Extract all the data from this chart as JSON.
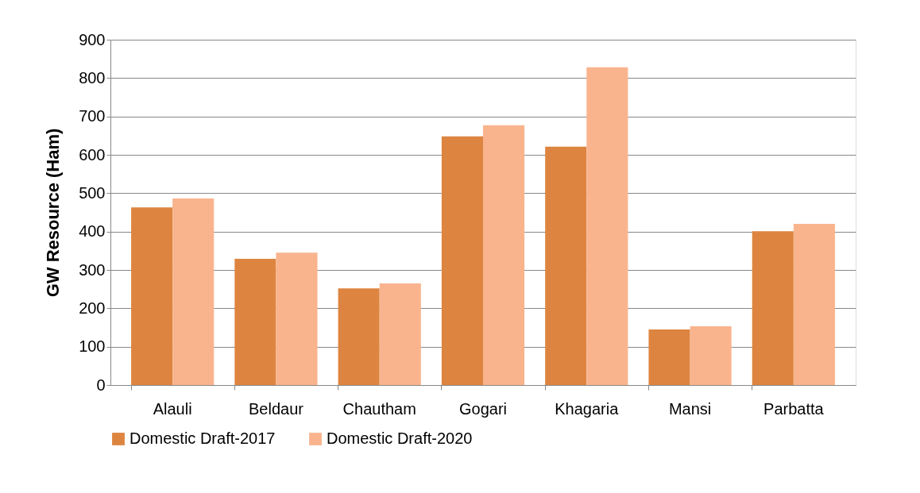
{
  "chart_data": {
    "type": "bar",
    "ylabel": "GW Resource (Ham)",
    "categories": [
      "Alauli",
      "Beldaur",
      "Chautham",
      "Gogari",
      "Khagaria",
      "Mansi",
      "Parbatta"
    ],
    "series": [
      {
        "name": "Domestic Draft-2017",
        "color": "#dd8540",
        "values": [
          463,
          329,
          252,
          648,
          621,
          145,
          401
        ]
      },
      {
        "name": "Domestic Draft-2020",
        "color": "#f9b48e",
        "values": [
          486,
          345,
          265,
          677,
          828,
          153,
          420
        ]
      }
    ],
    "ylim": [
      0,
      900
    ],
    "yticks": [
      0,
      100,
      200,
      300,
      400,
      500,
      600,
      700,
      800,
      900
    ],
    "grid": "y",
    "legend": "bottom"
  }
}
